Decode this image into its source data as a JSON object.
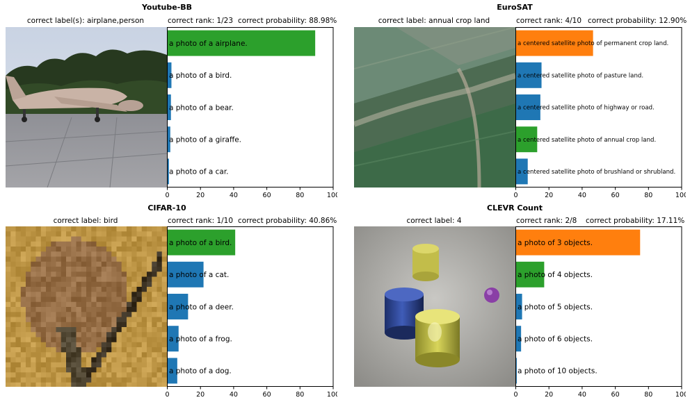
{
  "colors": {
    "green": "#2ca02c",
    "blue": "#1f77b4",
    "orange": "#ff7f0e"
  },
  "panels": [
    {
      "title": "Youtube-BB",
      "correct_label": "correct label(s): airplane,person",
      "rank": "correct rank: 1/23",
      "probability": "correct probability: 88.98%",
      "image_description": "airplane on tarmac"
    },
    {
      "title": "EuroSAT",
      "correct_label": "correct label: annual crop land",
      "rank": "correct rank: 4/10",
      "probability": "correct probability: 12.90%",
      "image_description": "satellite view of fields"
    },
    {
      "title": "CIFAR-10",
      "correct_label": "correct label: bird",
      "rank": "correct rank: 1/10",
      "probability": "correct probability: 40.86%",
      "image_description": "low-resolution bird"
    },
    {
      "title": "CLEVR Count",
      "correct_label": "correct label: 4",
      "rank": "correct rank: 2/8",
      "probability": "correct probability: 17.11%",
      "image_description": "rendered cylinders and sphere"
    }
  ],
  "chart_data": [
    {
      "type": "bar",
      "orientation": "horizontal",
      "categories": [
        "a photo of a airplane.",
        "a photo of a bird.",
        "a photo of a bear.",
        "a photo of a giraffe.",
        "a photo of a car."
      ],
      "values": [
        88.98,
        2.5,
        2.2,
        1.8,
        1.0
      ],
      "bar_colors": [
        "green",
        "blue",
        "blue",
        "blue",
        "blue"
      ],
      "xlim": [
        0,
        100
      ],
      "xticks": [
        0,
        20,
        40,
        60,
        80,
        100
      ],
      "label_size": "normal"
    },
    {
      "type": "bar",
      "orientation": "horizontal",
      "categories": [
        "a centered satellite photo of permanent crop land.",
        "a centered satellite photo of pasture land.",
        "a centered satellite photo of highway or road.",
        "a centered satellite photo of annual crop land.",
        "a centered satellite photo of brushland or shrubland."
      ],
      "values": [
        46.5,
        15.5,
        14.8,
        12.9,
        7.2
      ],
      "bar_colors": [
        "orange",
        "blue",
        "blue",
        "green",
        "blue"
      ],
      "xlim": [
        0,
        100
      ],
      "xticks": [
        0,
        20,
        40,
        60,
        80,
        100
      ],
      "label_size": "small"
    },
    {
      "type": "bar",
      "orientation": "horizontal",
      "categories": [
        "a photo of a bird.",
        "a photo of a cat.",
        "a photo of a deer.",
        "a photo of a frog.",
        "a photo of a dog."
      ],
      "values": [
        40.86,
        21.8,
        12.5,
        6.8,
        6.0
      ],
      "bar_colors": [
        "green",
        "blue",
        "blue",
        "blue",
        "blue"
      ],
      "xlim": [
        0,
        100
      ],
      "xticks": [
        0,
        20,
        40,
        60,
        80,
        100
      ],
      "label_size": "normal"
    },
    {
      "type": "bar",
      "orientation": "horizontal",
      "categories": [
        "a photo of 3 objects.",
        "a photo of 4 objects.",
        "a photo of 5 objects.",
        "a photo of 6 objects.",
        "a photo of 10 objects."
      ],
      "values": [
        74.8,
        17.11,
        3.8,
        3.2,
        0.6
      ],
      "bar_colors": [
        "orange",
        "green",
        "blue",
        "blue",
        "blue"
      ],
      "xlim": [
        0,
        100
      ],
      "xticks": [
        0,
        20,
        40,
        60,
        80,
        100
      ],
      "label_size": "normal"
    }
  ]
}
